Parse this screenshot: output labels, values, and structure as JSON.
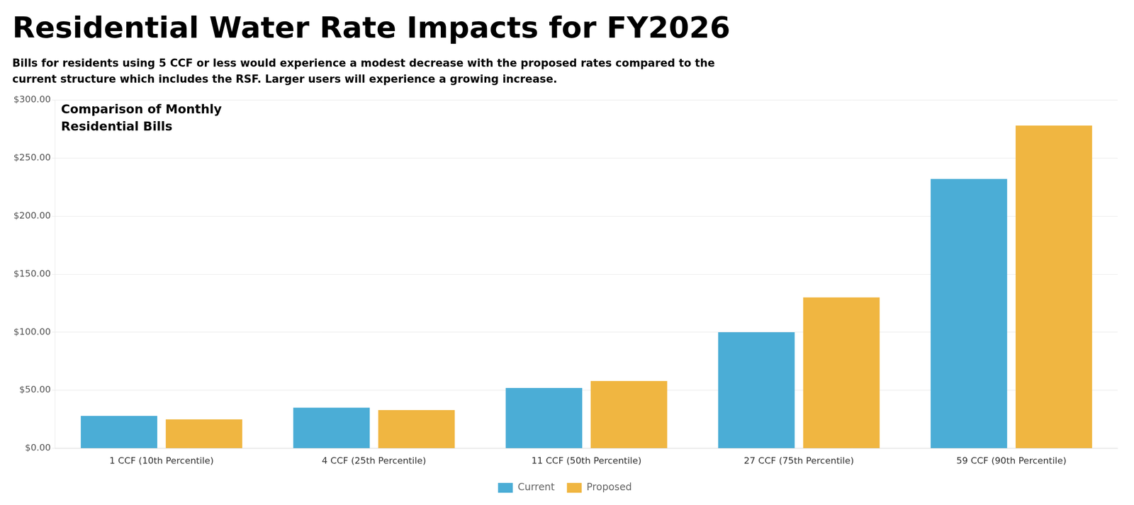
{
  "chart_data": {
    "type": "bar",
    "title": "Residential Water Rate Impacts for FY2026",
    "subtitle": [
      "Bills for residents using 5 CCF or less would experience a modest decrease with the proposed rates compared to the",
      "current structure which includes the RSF. Larger users will experience a growing increase."
    ],
    "annotations": [
      "Comparison of Monthly\nResidential Bills"
    ],
    "categories": [
      "1 CCF (10th Percentile)",
      "4 CCF (25th Percentile)",
      "11 CCF (50th Percentile)",
      "27 CCF (75th Percentile)",
      "59 CCF (90th Percentile)"
    ],
    "series": [
      {
        "name": "Current",
        "color": "#4BADD6",
        "values": [
          28.0,
          35.0,
          52.0,
          100.0,
          232.0
        ]
      },
      {
        "name": "Proposed",
        "color": "#F0B641",
        "values": [
          25.0,
          33.0,
          58.0,
          130.0,
          278.0
        ]
      }
    ],
    "ylim": [
      0,
      300
    ],
    "yticks": [
      {
        "value": 0,
        "label": "$0.00"
      },
      {
        "value": 50,
        "label": "$50.00"
      },
      {
        "value": 100,
        "label": "$100.00"
      },
      {
        "value": 150,
        "label": "$150.00"
      },
      {
        "value": 200,
        "label": "$200.00"
      },
      {
        "value": 250,
        "label": "$250.00"
      },
      {
        "value": 300,
        "label": "$300.00"
      }
    ],
    "grid": true,
    "legend": "bottom"
  }
}
